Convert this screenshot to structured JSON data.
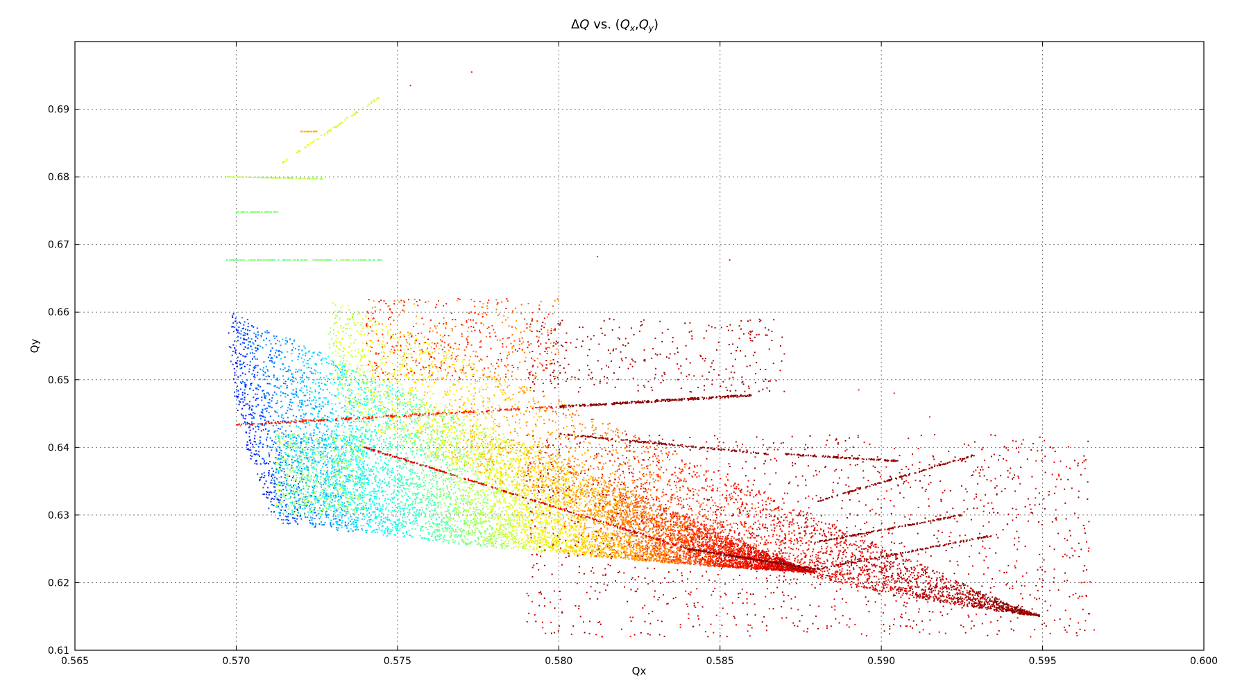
{
  "chart_data": {
    "type": "scatter",
    "title": "ΔQ vs. (Qx,Qy)",
    "title_parts": {
      "prefix": "Δ",
      "q1": "Q",
      "mid": " vs. (",
      "q2": "Q",
      "sub_x": "x",
      "comma": ",",
      "q3": "Q",
      "sub_y": "y",
      "close": ")"
    },
    "xlabel": "Qx",
    "ylabel": "Qy",
    "xlim": [
      0.565,
      0.6
    ],
    "ylim": [
      0.61,
      0.7
    ],
    "xticks": [
      "0.565",
      "0.570",
      "0.575",
      "0.580",
      "0.585",
      "0.590",
      "0.595",
      "0.600"
    ],
    "yticks": [
      "0.61",
      "0.62",
      "0.63",
      "0.64",
      "0.65",
      "0.66",
      "0.67",
      "0.68",
      "0.69"
    ],
    "grid": true,
    "colormap": "jet",
    "colorbar": false,
    "seed": 7,
    "series": [
      {
        "kind": "fan",
        "c0": 0.15,
        "c1": 0.95,
        "n": 9000,
        "apex": [
          0.5712,
          0.629
        ],
        "left_top": [
          0.5698,
          0.66
        ],
        "bottom_end": [
          0.588,
          0.6215
        ],
        "bottom_mid_y": 0.6238
      },
      {
        "kind": "fan",
        "c0": 0.55,
        "c1": 1.0,
        "n": 4200,
        "apex": [
          0.5735,
          0.644
        ],
        "left_top": [
          0.573,
          0.662
        ],
        "bottom_end": [
          0.595,
          0.615
        ],
        "bottom_mid_y": 0.621
      },
      {
        "kind": "line",
        "c": 0.85,
        "n": 260,
        "x0": 0.57,
        "y0": 0.6433,
        "x1": 0.58,
        "y1": 0.646,
        "spread": 0.0003
      },
      {
        "kind": "line",
        "c": 1.0,
        "n": 300,
        "x0": 0.58,
        "y0": 0.646,
        "x1": 0.586,
        "y1": 0.6477,
        "spread": 0.0003
      },
      {
        "kind": "line",
        "c": 0.9,
        "n": 300,
        "x0": 0.574,
        "y0": 0.64,
        "x1": 0.584,
        "y1": 0.625,
        "spread": 0.0002
      },
      {
        "kind": "line",
        "c": 1.0,
        "n": 260,
        "x0": 0.584,
        "y0": 0.625,
        "x1": 0.588,
        "y1": 0.622,
        "spread": 0.0002
      },
      {
        "kind": "line",
        "c": 1.0,
        "n": 160,
        "x0": 0.58,
        "y0": 0.642,
        "x1": 0.5865,
        "y1": 0.639,
        "spread": 0.0002
      },
      {
        "kind": "line",
        "c": 1.0,
        "n": 120,
        "x0": 0.587,
        "y0": 0.639,
        "x1": 0.5905,
        "y1": 0.638,
        "spread": 0.0002
      },
      {
        "kind": "line",
        "c": 1.0,
        "n": 140,
        "x0": 0.588,
        "y0": 0.622,
        "x1": 0.5935,
        "y1": 0.627,
        "spread": 0.0002
      },
      {
        "kind": "line",
        "c": 1.0,
        "n": 140,
        "x0": 0.588,
        "y0": 0.626,
        "x1": 0.5925,
        "y1": 0.63,
        "spread": 0.0002
      },
      {
        "kind": "line",
        "c": 1.0,
        "n": 140,
        "x0": 0.588,
        "y0": 0.632,
        "x1": 0.593,
        "y1": 0.639,
        "spread": 0.0002
      },
      {
        "kind": "line",
        "c": 0.5,
        "n": 140,
        "x0": 0.5697,
        "y0": 0.6677,
        "x1": 0.5745,
        "y1": 0.6677,
        "spread": 5e-05
      },
      {
        "kind": "line",
        "c": 0.55,
        "n": 100,
        "x0": 0.5697,
        "y0": 0.68,
        "x1": 0.5727,
        "y1": 0.6797,
        "spread": 5e-05
      },
      {
        "kind": "line",
        "c": 0.5,
        "n": 60,
        "x0": 0.57,
        "y0": 0.6748,
        "x1": 0.5713,
        "y1": 0.6748,
        "spread": 5e-05
      },
      {
        "kind": "line",
        "c": 0.6,
        "n": 70,
        "x0": 0.5714,
        "y0": 0.682,
        "x1": 0.5745,
        "y1": 0.692,
        "spread": 0.0002
      },
      {
        "kind": "line",
        "c": 0.7,
        "n": 25,
        "x0": 0.572,
        "y0": 0.6867,
        "x1": 0.5725,
        "y1": 0.6867,
        "spread": 5e-05
      },
      {
        "kind": "cloud",
        "c0": 0.88,
        "c1": 1.0,
        "n": 1400,
        "x0": 0.579,
        "x1": 0.5965,
        "y0": 0.612,
        "y1": 0.642
      },
      {
        "kind": "cloud",
        "c0": 0.92,
        "c1": 1.0,
        "n": 320,
        "x0": 0.579,
        "x1": 0.587,
        "y0": 0.648,
        "y1": 0.659
      },
      {
        "kind": "cloud",
        "c0": 0.7,
        "c1": 0.9,
        "n": 500,
        "x0": 0.574,
        "x1": 0.58,
        "y0": 0.65,
        "y1": 0.662
      },
      {
        "kind": "cloud",
        "c0": 0.35,
        "c1": 0.6,
        "n": 900,
        "x0": 0.5712,
        "x1": 0.574,
        "y0": 0.63,
        "y1": 0.642
      },
      {
        "kind": "points",
        "c": 0.85,
        "points": [
          [
            0.5773,
            0.6955
          ],
          [
            0.5754,
            0.6935
          ],
          [
            0.5812,
            0.6682
          ],
          [
            0.5853,
            0.6677
          ],
          [
            0.5893,
            0.6485
          ],
          [
            0.5904,
            0.648
          ],
          [
            0.5915,
            0.6445
          ],
          [
            0.5948,
            0.638
          ],
          [
            0.5955,
            0.636
          ],
          [
            0.5962,
            0.62
          ],
          [
            0.5966,
            0.613
          ]
        ]
      }
    ]
  }
}
